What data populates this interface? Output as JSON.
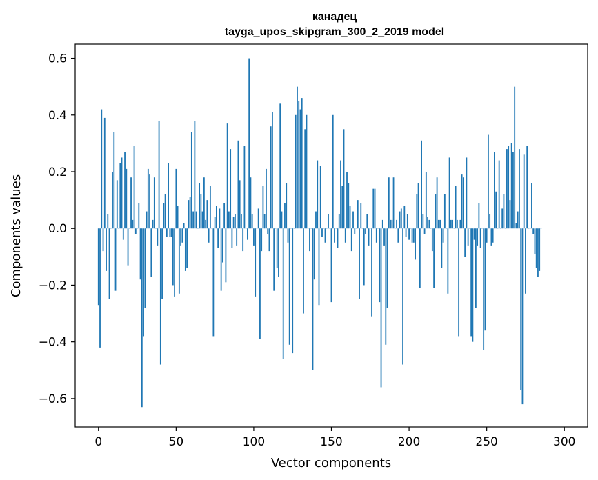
{
  "chart_data": {
    "type": "bar",
    "title": "канадец",
    "subtitle": "tayga_upos_skipgram_300_2_2019 model",
    "xlabel": "Vector components",
    "ylabel": "Components values",
    "xlim": [
      -15,
      315
    ],
    "ylim": [
      -0.7,
      0.65
    ],
    "x_ticks": [
      0,
      50,
      100,
      150,
      200,
      250,
      300
    ],
    "y_ticks": [
      -0.6,
      -0.4,
      -0.2,
      0.0,
      0.2,
      0.4,
      0.6
    ],
    "x_tick_labels": [
      "0",
      "50",
      "100",
      "150",
      "200",
      "250",
      "300"
    ],
    "y_tick_labels": [
      "−0.6",
      "−0.4",
      "−0.2",
      "0.0",
      "0.2",
      "0.4",
      "0.6"
    ],
    "grid": false,
    "bar_color": "#1f77b4",
    "values": [
      -0.27,
      -0.42,
      0.42,
      -0.08,
      0.39,
      -0.15,
      0.05,
      -0.25,
      0.0,
      0.2,
      0.34,
      -0.22,
      0.17,
      0.0,
      0.23,
      0.25,
      -0.04,
      0.27,
      0.21,
      -0.13,
      0.0,
      0.18,
      0.03,
      0.29,
      -0.02,
      0.0,
      0.09,
      -0.18,
      -0.63,
      -0.38,
      -0.28,
      0.06,
      0.21,
      0.19,
      -0.17,
      0.03,
      0.18,
      0.0,
      -0.06,
      0.38,
      -0.48,
      -0.25,
      0.09,
      0.12,
      -0.03,
      0.23,
      -0.03,
      -0.03,
      -0.2,
      -0.24,
      0.21,
      0.08,
      -0.23,
      -0.06,
      -0.05,
      0.02,
      -0.15,
      -0.14,
      0.1,
      0.11,
      0.34,
      0.06,
      0.38,
      0.06,
      0.0,
      0.16,
      0.12,
      0.06,
      0.18,
      0.03,
      0.1,
      -0.05,
      0.15,
      0.0,
      -0.38,
      0.04,
      0.08,
      -0.07,
      0.07,
      -0.22,
      -0.12,
      0.09,
      -0.19,
      0.37,
      0.06,
      0.28,
      -0.07,
      0.04,
      0.05,
      -0.06,
      0.31,
      0.17,
      0.05,
      -0.08,
      0.29,
      0.0,
      -0.04,
      0.6,
      0.18,
      0.05,
      -0.06,
      -0.24,
      0.0,
      0.07,
      -0.39,
      -0.08,
      0.15,
      0.05,
      0.21,
      -0.02,
      -0.08,
      0.36,
      0.41,
      -0.22,
      0.0,
      -0.14,
      -0.17,
      0.44,
      0.06,
      -0.46,
      0.09,
      0.16,
      -0.05,
      -0.41,
      0.0,
      -0.44,
      0.0,
      0.4,
      0.5,
      0.45,
      0.42,
      0.46,
      -0.3,
      0.35,
      0.4,
      0.0,
      -0.08,
      0.0,
      -0.5,
      -0.18,
      0.06,
      0.24,
      -0.27,
      0.22,
      -0.03,
      0.0,
      -0.05,
      0.0,
      0.05,
      0.0,
      -0.26,
      0.4,
      -0.05,
      0.0,
      -0.07,
      0.05,
      0.24,
      0.15,
      0.35,
      -0.05,
      0.2,
      0.16,
      0.08,
      -0.08,
      0.06,
      -0.02,
      0.0,
      0.1,
      -0.25,
      0.09,
      0.0,
      -0.2,
      -0.02,
      0.05,
      -0.06,
      0.0,
      -0.31,
      0.14,
      0.14,
      -0.05,
      0.0,
      -0.26,
      -0.56,
      0.03,
      -0.06,
      -0.41,
      -0.28,
      0.18,
      0.03,
      0.03,
      0.18,
      0.0,
      0.03,
      -0.05,
      0.06,
      0.07,
      -0.48,
      0.08,
      -0.03,
      0.05,
      -0.04,
      0.0,
      -0.05,
      -0.05,
      -0.11,
      0.12,
      0.16,
      -0.21,
      0.31,
      0.05,
      -0.02,
      0.2,
      0.04,
      0.03,
      0.0,
      -0.08,
      -0.21,
      0.12,
      0.18,
      0.03,
      0.03,
      -0.14,
      -0.05,
      0.12,
      0.0,
      -0.23,
      0.25,
      0.03,
      0.03,
      0.0,
      0.15,
      0.03,
      -0.38,
      0.03,
      0.19,
      0.18,
      -0.1,
      0.25,
      -0.06,
      0.0,
      -0.38,
      -0.4,
      -0.04,
      -0.28,
      -0.06,
      0.09,
      -0.07,
      0.0,
      -0.43,
      -0.36,
      -0.05,
      0.33,
      0.05,
      -0.06,
      -0.05,
      0.27,
      0.13,
      0.0,
      0.24,
      0.0,
      0.07,
      0.12,
      0.0,
      0.28,
      0.29,
      0.1,
      0.3,
      0.27,
      0.5,
      0.02,
      0.06,
      0.28,
      -0.57,
      -0.62,
      0.26,
      -0.23,
      0.29,
      0.0,
      0.0,
      0.16,
      -0.02,
      -0.09,
      -0.14,
      -0.17,
      -0.15,
      0.0
    ]
  }
}
